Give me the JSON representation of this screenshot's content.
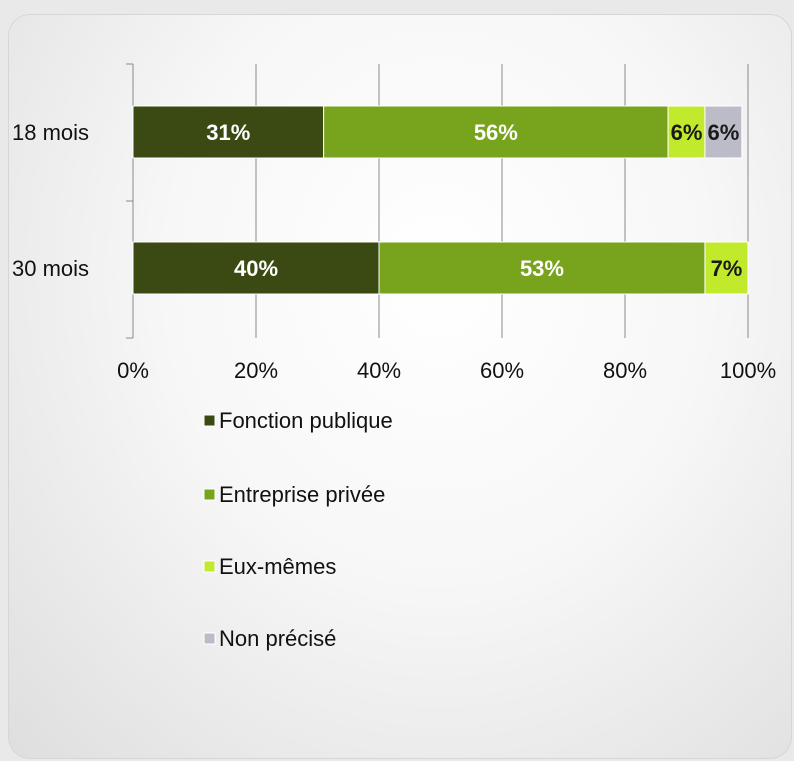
{
  "chart_data": {
    "type": "bar",
    "orientation": "horizontal",
    "stacked": "percent",
    "categories": [
      "18 mois",
      "30 mois"
    ],
    "series": [
      {
        "name": "Fonction publique",
        "values": [
          31,
          40
        ],
        "labels": [
          "31%",
          "40%"
        ],
        "color": "#3a4a12",
        "label_color": "#ffffff"
      },
      {
        "name": "Entreprise privée",
        "values": [
          56,
          53
        ],
        "labels": [
          "56%",
          "53%"
        ],
        "color": "#78a31c",
        "label_color": "#ffffff"
      },
      {
        "name": "Eux-mêmes",
        "values": [
          6,
          7
        ],
        "labels": [
          "6%",
          "7%"
        ],
        "color": "#c2ea2c",
        "label_color": "#1a1a1a"
      },
      {
        "name": "Non précisé",
        "values": [
          6,
          0
        ],
        "labels": [
          "6%",
          ""
        ],
        "color": "#bcbcc8",
        "label_color": "#1a1a1a"
      }
    ],
    "xlim": [
      0,
      100
    ],
    "x_ticks": [
      "0%",
      "20%",
      "40%",
      "60%",
      "80%",
      "100%"
    ],
    "grid": true,
    "legend_position": "bottom"
  }
}
